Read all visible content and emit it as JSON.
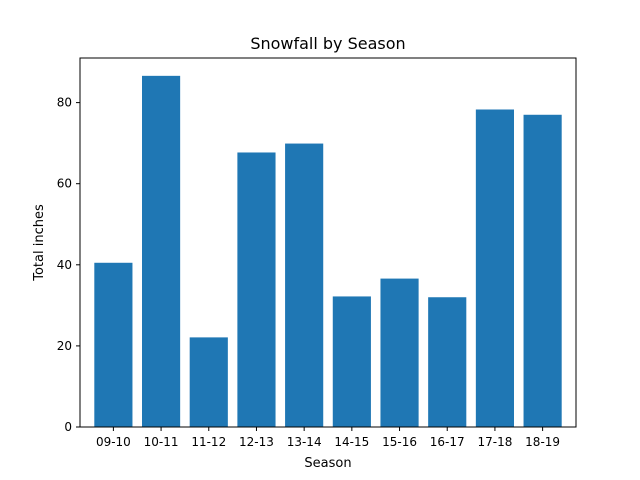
{
  "chart_data": {
    "type": "bar",
    "title": "Snowfall by Season",
    "xlabel": "Season",
    "ylabel": "Total inches",
    "categories": [
      "09-10",
      "10-11",
      "11-12",
      "12-13",
      "13-14",
      "14-15",
      "15-16",
      "16-17",
      "17-18",
      "18-19"
    ],
    "values": [
      40.5,
      86.6,
      22.1,
      67.7,
      69.9,
      32.2,
      36.6,
      32.0,
      78.3,
      77.0
    ],
    "ylim": [
      0,
      91
    ],
    "yticks": [
      0,
      20,
      40,
      60,
      80
    ],
    "bar_color": "#1f77b4",
    "grid": false,
    "legend": "none"
  }
}
